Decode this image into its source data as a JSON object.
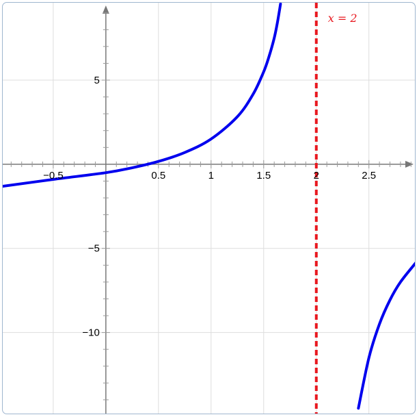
{
  "chart_data": {
    "type": "line",
    "title": "",
    "xlabel": "",
    "ylabel": "",
    "xlim": [
      -0.98,
      2.95
    ],
    "ylim": [
      -14.9,
      9.6
    ],
    "grid": true,
    "x_ticks": [
      -0.5,
      0.5,
      1,
      1.5,
      2,
      2.5
    ],
    "x_tick_labels": [
      "−0.5",
      "0.5",
      "1",
      "1.5",
      "2",
      "2.5"
    ],
    "y_ticks": [
      5,
      -5,
      -10
    ],
    "y_tick_labels": [
      "5",
      "−5",
      "−10"
    ],
    "series": [
      {
        "color": "#0000ee",
        "points": [
          [
            -0.98,
            -1.31
          ],
          [
            -0.5,
            -0.9
          ],
          [
            0,
            -0.5
          ],
          [
            0.25,
            -0.21
          ],
          [
            0.5,
            0.17
          ],
          [
            0.75,
            0.7
          ],
          [
            1,
            1.5
          ],
          [
            1.25,
            2.83
          ],
          [
            1.4,
            4.17
          ],
          [
            1.5,
            5.5
          ],
          [
            1.55,
            6.39
          ],
          [
            1.6,
            7.5
          ],
          [
            1.63,
            8.41
          ],
          [
            1.66,
            9.53
          ],
          [
            2.4,
            -14.5
          ],
          [
            2.5,
            -11.5
          ],
          [
            2.6,
            -9.5
          ],
          [
            2.7,
            -8.07
          ],
          [
            2.8,
            -7.0
          ],
          [
            2.95,
            -5.82
          ]
        ]
      }
    ],
    "asymptote": {
      "x": 2,
      "label": "x = 2",
      "color": "#e8181f",
      "style": "dashed"
    }
  },
  "colors": {
    "axis": "#777777",
    "grid": "#dddddd",
    "minor_tick": "#999999"
  }
}
